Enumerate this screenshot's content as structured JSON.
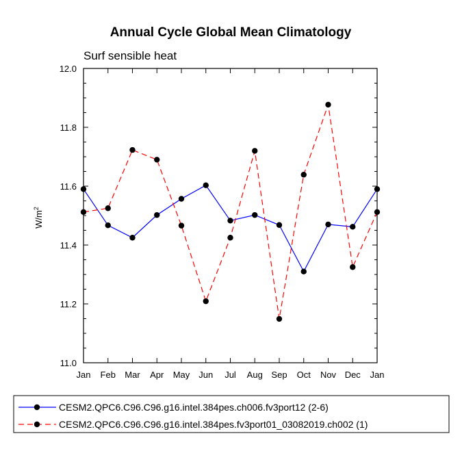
{
  "chart_data": {
    "type": "line",
    "title": "Annual Cycle Global Mean Climatology",
    "subtitle": "Surf sensible heat",
    "xlabel": "",
    "ylabel": "W/m",
    "ylabel_sup": "2",
    "categories": [
      "Jan",
      "Feb",
      "Mar",
      "Apr",
      "May",
      "Jun",
      "Jul",
      "Aug",
      "Sep",
      "Oct",
      "Nov",
      "Dec",
      "Jan"
    ],
    "ylim": [
      11.0,
      12.0
    ],
    "yticks": [
      11.0,
      11.2,
      11.4,
      11.6,
      11.8,
      12.0
    ],
    "ytick_labels": [
      "11.0",
      "11.2",
      "11.4",
      "11.6",
      "11.8",
      "12.0"
    ],
    "series": [
      {
        "name": "CESM2.QPC6.C96.C96.g16.intel.384pes.ch006.fv3port12 (2-6)",
        "color": "#0000ff",
        "dash": "solid",
        "values": [
          11.59,
          11.467,
          11.425,
          11.502,
          11.557,
          11.603,
          11.483,
          11.502,
          11.468,
          11.31,
          11.47,
          11.462,
          11.59
        ]
      },
      {
        "name": "CESM2.QPC6.C96.C96.g16.intel.384pes.fv3port01_03082019.ch002 (1)",
        "color": "#ff0000",
        "dash": "dashed",
        "values": [
          11.512,
          11.525,
          11.723,
          11.69,
          11.466,
          11.209,
          11.425,
          11.72,
          11.149,
          11.639,
          11.877,
          11.325,
          11.512
        ]
      }
    ]
  }
}
